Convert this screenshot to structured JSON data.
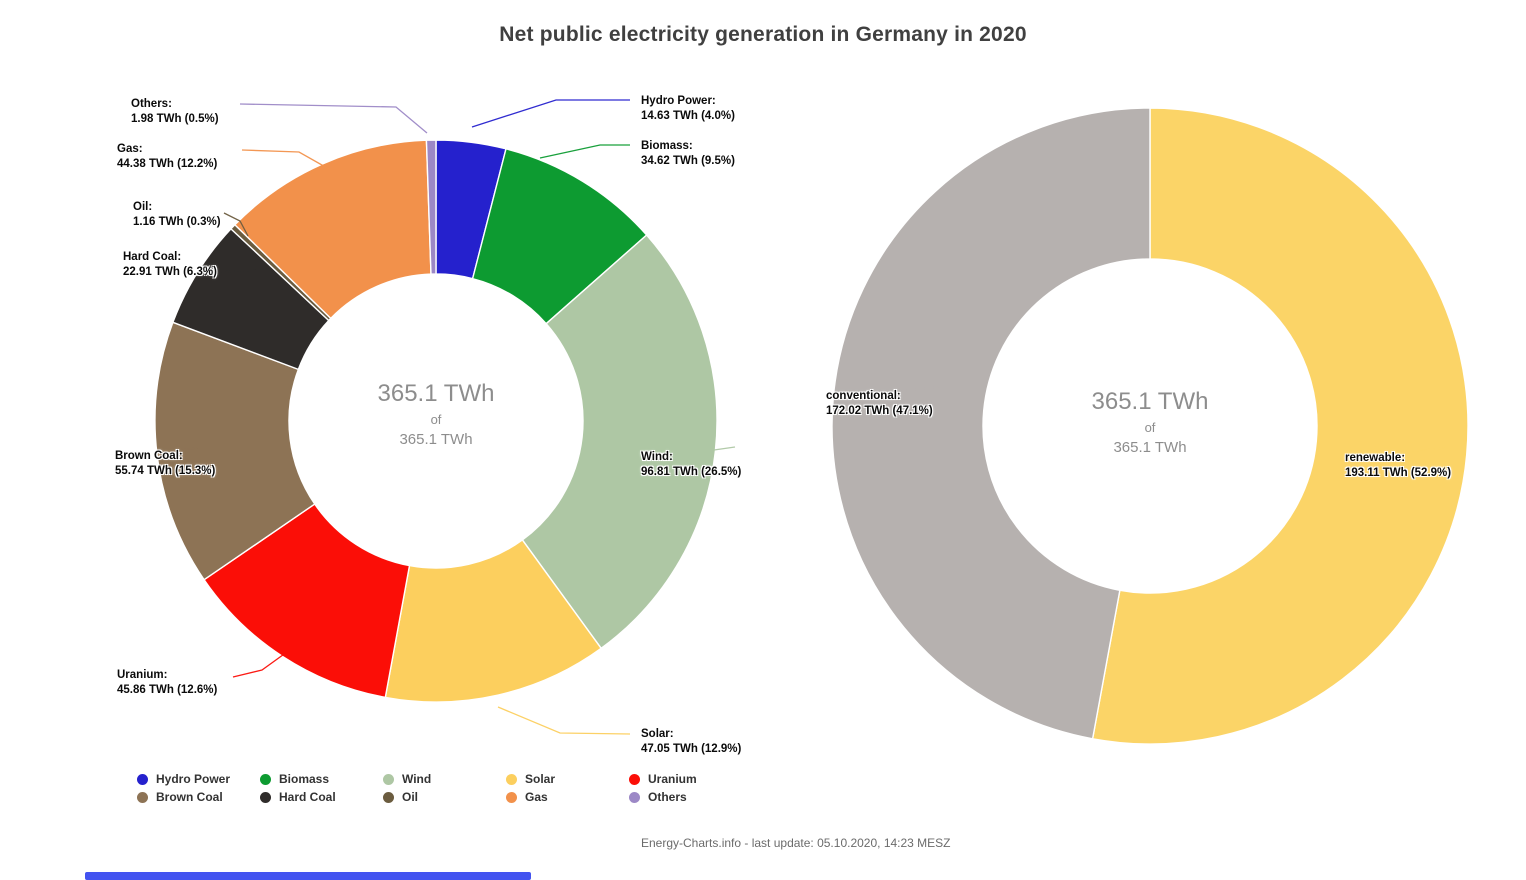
{
  "title": "Net public electricity generation in Germany in 2020",
  "footer": "Energy-Charts.info - last update: 05.10.2020, 14:23 MESZ",
  "bottom_bar": {
    "color": "#4353f0"
  },
  "chart_data": [
    {
      "type": "pie",
      "name": "net-public-electricity-generation-by-source",
      "donut": true,
      "title": "Net public electricity generation in Germany in 2020",
      "total_label": "365.1 TWh",
      "center_text": {
        "line1": "365.1 TWh",
        "line2": "of",
        "line3": "365.1 TWh"
      },
      "slices": [
        {
          "label": "Hydro Power",
          "twh": 14.63,
          "percent": 4.0,
          "color": "#2521cd",
          "line1": "Hydro Power:",
          "line2": "14.63 TWh (4.0%)"
        },
        {
          "label": "Biomass",
          "twh": 34.62,
          "percent": 9.5,
          "color": "#0d9b31",
          "line1": "Biomass:",
          "line2": "34.62 TWh (9.5%)"
        },
        {
          "label": "Wind",
          "twh": 96.81,
          "percent": 26.5,
          "color": "#aec7a4",
          "line1": "Wind:",
          "line2": "96.81 TWh (26.5%)"
        },
        {
          "label": "Solar",
          "twh": 47.05,
          "percent": 12.9,
          "color": "#fccf5e",
          "line1": "Solar:",
          "line2": "47.05 TWh (12.9%)"
        },
        {
          "label": "Uranium",
          "twh": 45.86,
          "percent": 12.6,
          "color": "#fb0e07",
          "line1": "Uranium:",
          "line2": "45.86 TWh (12.6%)"
        },
        {
          "label": "Brown Coal",
          "twh": 55.74,
          "percent": 15.3,
          "color": "#8d7355",
          "line1": "Brown Coal:",
          "line2": "55.74 TWh (15.3%)"
        },
        {
          "label": "Hard Coal",
          "twh": 22.91,
          "percent": 6.3,
          "color": "#2f2c2a",
          "line1": "Hard Coal:",
          "line2": "22.91 TWh (6.3%)"
        },
        {
          "label": "Oil",
          "twh": 1.16,
          "percent": 0.3,
          "color": "#6b5c3f",
          "line1": "Oil:",
          "line2": "1.16 TWh (0.3%)"
        },
        {
          "label": "Gas",
          "twh": 44.38,
          "percent": 12.2,
          "color": "#f2914b",
          "line1": "Gas:",
          "line2": "44.38 TWh (12.2%)"
        },
        {
          "label": "Others",
          "twh": 1.98,
          "percent": 0.5,
          "color": "#9c88c6",
          "line1": "Others:",
          "line2": "1.98 TWh (0.5%)"
        }
      ]
    },
    {
      "type": "pie",
      "name": "renewable-vs-conventional-share",
      "donut": true,
      "total_label": "365.1 TWh",
      "center_text": {
        "line1": "365.1 TWh",
        "line2": "of",
        "line3": "365.1 TWh"
      },
      "slices": [
        {
          "label": "renewable",
          "twh": 193.11,
          "percent": 52.9,
          "color": "#fbd467",
          "line1": "renewable:",
          "line2": "193.11 TWh (52.9%)"
        },
        {
          "label": "conventional",
          "twh": 172.02,
          "percent": 47.1,
          "color": "#b6b1af",
          "line1": "conventional:",
          "line2": "172.02 TWh (47.1%)"
        }
      ]
    }
  ],
  "legend": {
    "items": [
      {
        "label": "Hydro Power",
        "color": "#2521cd"
      },
      {
        "label": "Biomass",
        "color": "#0d9b31"
      },
      {
        "label": "Wind",
        "color": "#aec7a4"
      },
      {
        "label": "Solar",
        "color": "#fccf5e"
      },
      {
        "label": "Uranium",
        "color": "#fb0e07"
      },
      {
        "label": "Brown Coal",
        "color": "#8d7355"
      },
      {
        "label": "Hard Coal",
        "color": "#2f2c2a"
      },
      {
        "label": "Oil",
        "color": "#6b5c3f"
      },
      {
        "label": "Gas",
        "color": "#f2914b"
      },
      {
        "label": "Others",
        "color": "#9c88c6"
      }
    ]
  }
}
